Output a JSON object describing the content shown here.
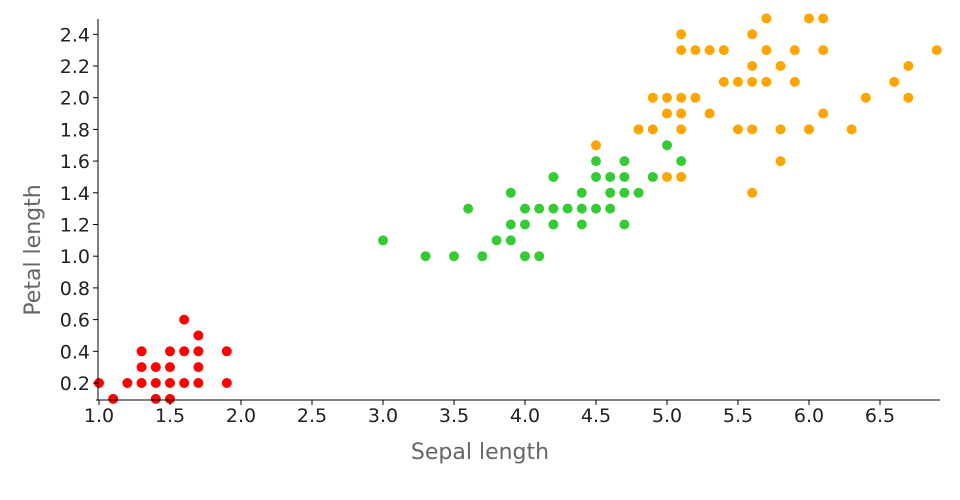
{
  "chart_data": {
    "type": "scatter",
    "title": "",
    "xlabel": "Sepal length",
    "ylabel": "Petal length",
    "xlim": [
      1.0,
      6.9
    ],
    "ylim": [
      0.1,
      2.5
    ],
    "x_ticks": [
      "1.0",
      "1.5",
      "2.0",
      "2.5",
      "3.0",
      "3.5",
      "4.0",
      "4.5",
      "5.0",
      "5.5",
      "6.0",
      "6.5"
    ],
    "y_ticks": [
      "0.2",
      "0.4",
      "0.6",
      "0.8",
      "1.0",
      "1.2",
      "1.4",
      "1.6",
      "1.8",
      "2.0",
      "2.2",
      "2.4"
    ],
    "grid": false,
    "legend": "none",
    "series": [
      {
        "color": "#ff0000",
        "points": [
          [
            1.0,
            0.2
          ],
          [
            1.1,
            0.1
          ],
          [
            1.2,
            0.2
          ],
          [
            1.3,
            0.2
          ],
          [
            1.3,
            0.3
          ],
          [
            1.3,
            0.4
          ],
          [
            1.4,
            0.1
          ],
          [
            1.4,
            0.2
          ],
          [
            1.4,
            0.3
          ],
          [
            1.5,
            0.1
          ],
          [
            1.5,
            0.2
          ],
          [
            1.5,
            0.3
          ],
          [
            1.5,
            0.4
          ],
          [
            1.6,
            0.2
          ],
          [
            1.6,
            0.4
          ],
          [
            1.6,
            0.6
          ],
          [
            1.7,
            0.2
          ],
          [
            1.7,
            0.3
          ],
          [
            1.7,
            0.4
          ],
          [
            1.7,
            0.5
          ],
          [
            1.9,
            0.2
          ],
          [
            1.9,
            0.4
          ]
        ]
      },
      {
        "color": "#33cc33",
        "points": [
          [
            3.0,
            1.1
          ],
          [
            3.3,
            1.0
          ],
          [
            3.5,
            1.0
          ],
          [
            3.6,
            1.3
          ],
          [
            3.7,
            1.0
          ],
          [
            3.8,
            1.1
          ],
          [
            3.9,
            1.1
          ],
          [
            3.9,
            1.2
          ],
          [
            3.9,
            1.4
          ],
          [
            4.0,
            1.0
          ],
          [
            4.0,
            1.2
          ],
          [
            4.0,
            1.3
          ],
          [
            4.1,
            1.0
          ],
          [
            4.1,
            1.3
          ],
          [
            4.2,
            1.2
          ],
          [
            4.2,
            1.3
          ],
          [
            4.2,
            1.5
          ],
          [
            4.3,
            1.3
          ],
          [
            4.4,
            1.2
          ],
          [
            4.4,
            1.3
          ],
          [
            4.4,
            1.4
          ],
          [
            4.5,
            1.3
          ],
          [
            4.5,
            1.5
          ],
          [
            4.5,
            1.6
          ],
          [
            4.6,
            1.3
          ],
          [
            4.6,
            1.4
          ],
          [
            4.6,
            1.5
          ],
          [
            4.7,
            1.2
          ],
          [
            4.7,
            1.4
          ],
          [
            4.7,
            1.5
          ],
          [
            4.7,
            1.6
          ],
          [
            4.8,
            1.4
          ],
          [
            4.8,
            1.8
          ],
          [
            4.9,
            1.5
          ],
          [
            5.0,
            1.7
          ],
          [
            5.1,
            1.6
          ]
        ]
      },
      {
        "color": "#ffa500",
        "points": [
          [
            4.5,
            1.7
          ],
          [
            4.8,
            1.8
          ],
          [
            4.9,
            1.8
          ],
          [
            4.9,
            2.0
          ],
          [
            5.0,
            1.5
          ],
          [
            5.0,
            1.9
          ],
          [
            5.0,
            2.0
          ],
          [
            5.1,
            1.5
          ],
          [
            5.1,
            1.8
          ],
          [
            5.1,
            1.9
          ],
          [
            5.1,
            2.0
          ],
          [
            5.1,
            2.3
          ],
          [
            5.1,
            2.4
          ],
          [
            5.2,
            2.0
          ],
          [
            5.2,
            2.3
          ],
          [
            5.3,
            1.9
          ],
          [
            5.3,
            2.3
          ],
          [
            5.4,
            2.1
          ],
          [
            5.4,
            2.3
          ],
          [
            5.5,
            1.8
          ],
          [
            5.5,
            2.1
          ],
          [
            5.6,
            1.4
          ],
          [
            5.6,
            1.8
          ],
          [
            5.6,
            2.1
          ],
          [
            5.6,
            2.2
          ],
          [
            5.6,
            2.4
          ],
          [
            5.7,
            2.1
          ],
          [
            5.7,
            2.3
          ],
          [
            5.7,
            2.5
          ],
          [
            5.8,
            1.6
          ],
          [
            5.8,
            1.8
          ],
          [
            5.8,
            2.2
          ],
          [
            5.9,
            2.1
          ],
          [
            5.9,
            2.3
          ],
          [
            6.0,
            1.8
          ],
          [
            6.0,
            2.5
          ],
          [
            6.1,
            1.9
          ],
          [
            6.1,
            2.3
          ],
          [
            6.1,
            2.5
          ],
          [
            6.3,
            1.8
          ],
          [
            6.4,
            2.0
          ],
          [
            6.6,
            2.1
          ],
          [
            6.7,
            2.0
          ],
          [
            6.7,
            2.2
          ],
          [
            6.9,
            2.3
          ]
        ]
      }
    ]
  }
}
